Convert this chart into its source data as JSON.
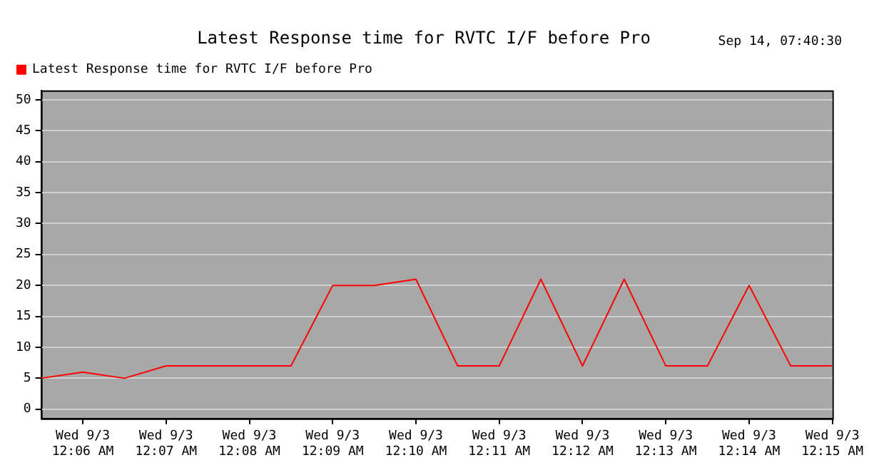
{
  "chart_data": {
    "type": "line",
    "title": "Latest Response time for RVTC I/F before Pro",
    "annotations": [
      "Sep 14, 07:40:30"
    ],
    "categories": [
      null,
      "Wed 9/3\n12:06 AM",
      null,
      "Wed 9/3\n12:07 AM",
      null,
      "Wed 9/3\n12:08 AM",
      null,
      "Wed 9/3\n12:09 AM",
      null,
      "Wed 9/3\n12:10 AM",
      null,
      "Wed 9/3\n12:11 AM",
      null,
      "Wed 9/3\n12:12 AM",
      null,
      "Wed 9/3\n12:13 AM",
      null,
      "Wed 9/3\n12:14 AM",
      null,
      "Wed 9/3\n12:15 AM"
    ],
    "series": [
      {
        "name": "Latest Response time for RVTC I/F before Pro",
        "color": "#ff0000",
        "values": [
          5,
          6,
          5,
          7,
          7,
          7,
          7,
          20,
          20,
          21,
          7,
          7,
          21,
          7,
          21,
          7,
          7,
          20,
          7,
          7
        ]
      }
    ],
    "ylim": [
      -1.5,
      51.5
    ],
    "yticks": [
      0,
      5,
      10,
      15,
      20,
      25,
      30,
      35,
      40,
      45,
      50
    ],
    "grid": "y",
    "legend": "top left",
    "marker": "none",
    "line_style": "solid"
  }
}
